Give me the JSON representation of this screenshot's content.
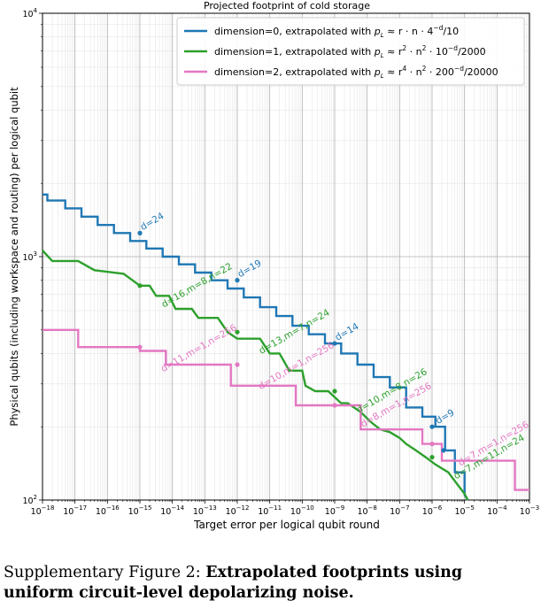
{
  "chart_data": {
    "type": "line",
    "title": "Projected footprint of cold storage",
    "xlabel": "Target error per logical qubit round",
    "ylabel": "Physical qubits (including workspace and routing) per logical qubit",
    "xscale": "log",
    "yscale": "log",
    "xlim": [
      1e-18,
      0.001
    ],
    "ylim": [
      100,
      10000
    ],
    "x_ticks": [
      "10^-18",
      "10^-17",
      "10^-16",
      "10^-15",
      "10^-14",
      "10^-13",
      "10^-12",
      "10^-11",
      "10^-10",
      "10^-9",
      "10^-8",
      "10^-7",
      "10^-6",
      "10^-5",
      "10^-4",
      "10^-3"
    ],
    "y_ticks": [
      "10^2",
      "10^3",
      "10^4"
    ],
    "grid": true,
    "legend_position": "top-center",
    "legend": [
      {
        "prefix": "dimension=0, extrapolated with ",
        "formula_main": "≈ r · n · 4",
        "formula_exp": "−d",
        "formula_tail": "/10",
        "color": "#1f77b4"
      },
      {
        "prefix": "dimension=1, extrapolated with ",
        "formula_main": "≈ r",
        "formula_exp2": "2",
        "formula_mid": " · n",
        "formula_exp": "2",
        "formula_tail": " · 10",
        "formula_exp3": "−d",
        "formula_tail2": "/2000",
        "color": "#2ca02c"
      },
      {
        "prefix": "dimension=2, extrapolated with ",
        "formula_main": "≈ r",
        "formula_exp2": "4",
        "formula_mid": " · n",
        "formula_exp": "2",
        "formula_tail": " · 200",
        "formula_exp3": "−d",
        "formula_tail2": "/20000",
        "color": "#e377c2"
      }
    ],
    "series": [
      {
        "name": "dimension=0",
        "color": "#1f77b4",
        "points": [
          [
            -18,
            1800
          ],
          [
            -17.85,
            1800
          ],
          [
            -17.85,
            1700
          ],
          [
            -17.3,
            1700
          ],
          [
            -17.3,
            1580
          ],
          [
            -16.8,
            1580
          ],
          [
            -16.8,
            1460
          ],
          [
            -16.3,
            1460
          ],
          [
            -16.3,
            1350
          ],
          [
            -15.8,
            1350
          ],
          [
            -15.8,
            1250
          ],
          [
            -15.3,
            1250
          ],
          [
            -15.3,
            1160
          ],
          [
            -14.8,
            1160
          ],
          [
            -14.8,
            1080
          ],
          [
            -14.3,
            1080
          ],
          [
            -14.3,
            1000
          ],
          [
            -13.8,
            1000
          ],
          [
            -13.8,
            930
          ],
          [
            -13.3,
            930
          ],
          [
            -13.3,
            860
          ],
          [
            -12.8,
            860
          ],
          [
            -12.8,
            800
          ],
          [
            -12.3,
            800
          ],
          [
            -12.3,
            740
          ],
          [
            -11.8,
            740
          ],
          [
            -11.8,
            680
          ],
          [
            -11.3,
            680
          ],
          [
            -11.3,
            620
          ],
          [
            -10.8,
            620
          ],
          [
            -10.8,
            570
          ],
          [
            -10.3,
            570
          ],
          [
            -10.3,
            520
          ],
          [
            -9.8,
            520
          ],
          [
            -9.8,
            480
          ],
          [
            -9.3,
            480
          ],
          [
            -9.3,
            440
          ],
          [
            -8.8,
            440
          ],
          [
            -8.8,
            400
          ],
          [
            -8.3,
            400
          ],
          [
            -8.3,
            360
          ],
          [
            -7.8,
            360
          ],
          [
            -7.8,
            320
          ],
          [
            -7.3,
            320
          ],
          [
            -7.3,
            290
          ],
          [
            -6.8,
            290
          ],
          [
            -6.8,
            240
          ],
          [
            -6.3,
            240
          ],
          [
            -6.3,
            220
          ],
          [
            -5.9,
            220
          ],
          [
            -5.9,
            200
          ],
          [
            -5.6,
            200
          ],
          [
            -5.6,
            160
          ],
          [
            -5.3,
            160
          ],
          [
            -5.3,
            130
          ],
          [
            -5.0,
            130
          ],
          [
            -5.0,
            105
          ],
          [
            -4.9,
            97
          ]
        ]
      },
      {
        "name": "dimension=1",
        "color": "#2ca02c",
        "points": [
          [
            -18,
            1060
          ],
          [
            -17.7,
            960
          ],
          [
            -16.9,
            960
          ],
          [
            -16.4,
            880
          ],
          [
            -15.5,
            850
          ],
          [
            -15.0,
            760
          ],
          [
            -14.7,
            760
          ],
          [
            -14.5,
            690
          ],
          [
            -14.1,
            690
          ],
          [
            -13.9,
            610
          ],
          [
            -13.4,
            610
          ],
          [
            -13.2,
            560
          ],
          [
            -12.6,
            560
          ],
          [
            -12.3,
            490
          ],
          [
            -12.0,
            460
          ],
          [
            -11.3,
            460
          ],
          [
            -11.0,
            400
          ],
          [
            -10.7,
            400
          ],
          [
            -10.4,
            340
          ],
          [
            -10.0,
            340
          ],
          [
            -9.9,
            295
          ],
          [
            -9.6,
            280
          ],
          [
            -9.2,
            280
          ],
          [
            -8.8,
            250
          ],
          [
            -8.6,
            250
          ],
          [
            -8.2,
            230
          ],
          [
            -7.9,
            210
          ],
          [
            -7.6,
            195
          ],
          [
            -7.3,
            190
          ],
          [
            -7.0,
            180
          ],
          [
            -6.8,
            170
          ],
          [
            -6.5,
            160
          ],
          [
            -6.2,
            150
          ],
          [
            -5.9,
            140
          ],
          [
            -5.5,
            130
          ],
          [
            -5.2,
            115
          ],
          [
            -5.0,
            106
          ],
          [
            -4.9,
            100
          ]
        ]
      },
      {
        "name": "dimension=2",
        "color": "#e377c2",
        "points": [
          [
            -18,
            500
          ],
          [
            -16.9,
            500
          ],
          [
            -16.9,
            425
          ],
          [
            -15.0,
            425
          ],
          [
            -15.0,
            410
          ],
          [
            -14.2,
            410
          ],
          [
            -14.2,
            360
          ],
          [
            -12.2,
            360
          ],
          [
            -12.2,
            295
          ],
          [
            -10.2,
            295
          ],
          [
            -10.2,
            245
          ],
          [
            -8.2,
            245
          ],
          [
            -8.2,
            195
          ],
          [
            -6.3,
            195
          ],
          [
            -6.3,
            170
          ],
          [
            -5.7,
            170
          ],
          [
            -5.7,
            145
          ],
          [
            -3.45,
            145
          ],
          [
            -3.45,
            110
          ],
          [
            -3.0,
            110
          ]
        ]
      }
    ],
    "markers": [
      {
        "series": 0,
        "x": -15.0,
        "y": 1250
      },
      {
        "series": 0,
        "x": -12.0,
        "y": 800
      },
      {
        "series": 0,
        "x": -9.0,
        "y": 440
      },
      {
        "series": 0,
        "x": -6.0,
        "y": 200
      },
      {
        "series": 0,
        "x": -5.65,
        "y": 160
      },
      {
        "series": 1,
        "x": -15.0,
        "y": 760
      },
      {
        "series": 1,
        "x": -12.0,
        "y": 490
      },
      {
        "series": 1,
        "x": -9.0,
        "y": 280
      },
      {
        "series": 1,
        "x": -6.0,
        "y": 150
      },
      {
        "series": 2,
        "x": -15.0,
        "y": 425
      },
      {
        "series": 2,
        "x": -12.0,
        "y": 360
      },
      {
        "series": 2,
        "x": -9.0,
        "y": 245
      },
      {
        "series": 2,
        "x": -6.0,
        "y": 170
      }
    ],
    "annotations": [
      {
        "text": "d=24",
        "x": -15.0,
        "y": 1250,
        "series": 0
      },
      {
        "text": "d=19",
        "x": -12.0,
        "y": 800,
        "series": 0
      },
      {
        "text": "d=14",
        "x": -9.0,
        "y": 440,
        "series": 0
      },
      {
        "text": "d=9",
        "x": -5.9,
        "y": 200,
        "series": 0
      },
      {
        "text": "d=16,m=8,n=22",
        "x": -15.0,
        "y": 760,
        "series": 1
      },
      {
        "text": "d=13,m=7,n=24",
        "x": -12.0,
        "y": 490,
        "series": 1
      },
      {
        "text": "d=10,m=8,n=26",
        "x": -9.0,
        "y": 280,
        "series": 1
      },
      {
        "text": "d=7,m=11,n=24",
        "x": -6.0,
        "y": 150,
        "series": 1
      },
      {
        "text": "d=11,m=1,n=256",
        "x": -15.0,
        "y": 425,
        "series": 2
      },
      {
        "text": "d=10,m=1,n=256",
        "x": -12.0,
        "y": 360,
        "series": 2
      },
      {
        "text": "d=8,m=1,n=256",
        "x": -9.0,
        "y": 245,
        "series": 2
      },
      {
        "text": "d=7,m=1,n=256",
        "x": -6.0,
        "y": 170,
        "series": 2
      }
    ]
  },
  "caption": {
    "lead": "Supplementary Figure 2: ",
    "bold": "Extrapolated footprints using uniform circuit-level depolarizing noise."
  }
}
